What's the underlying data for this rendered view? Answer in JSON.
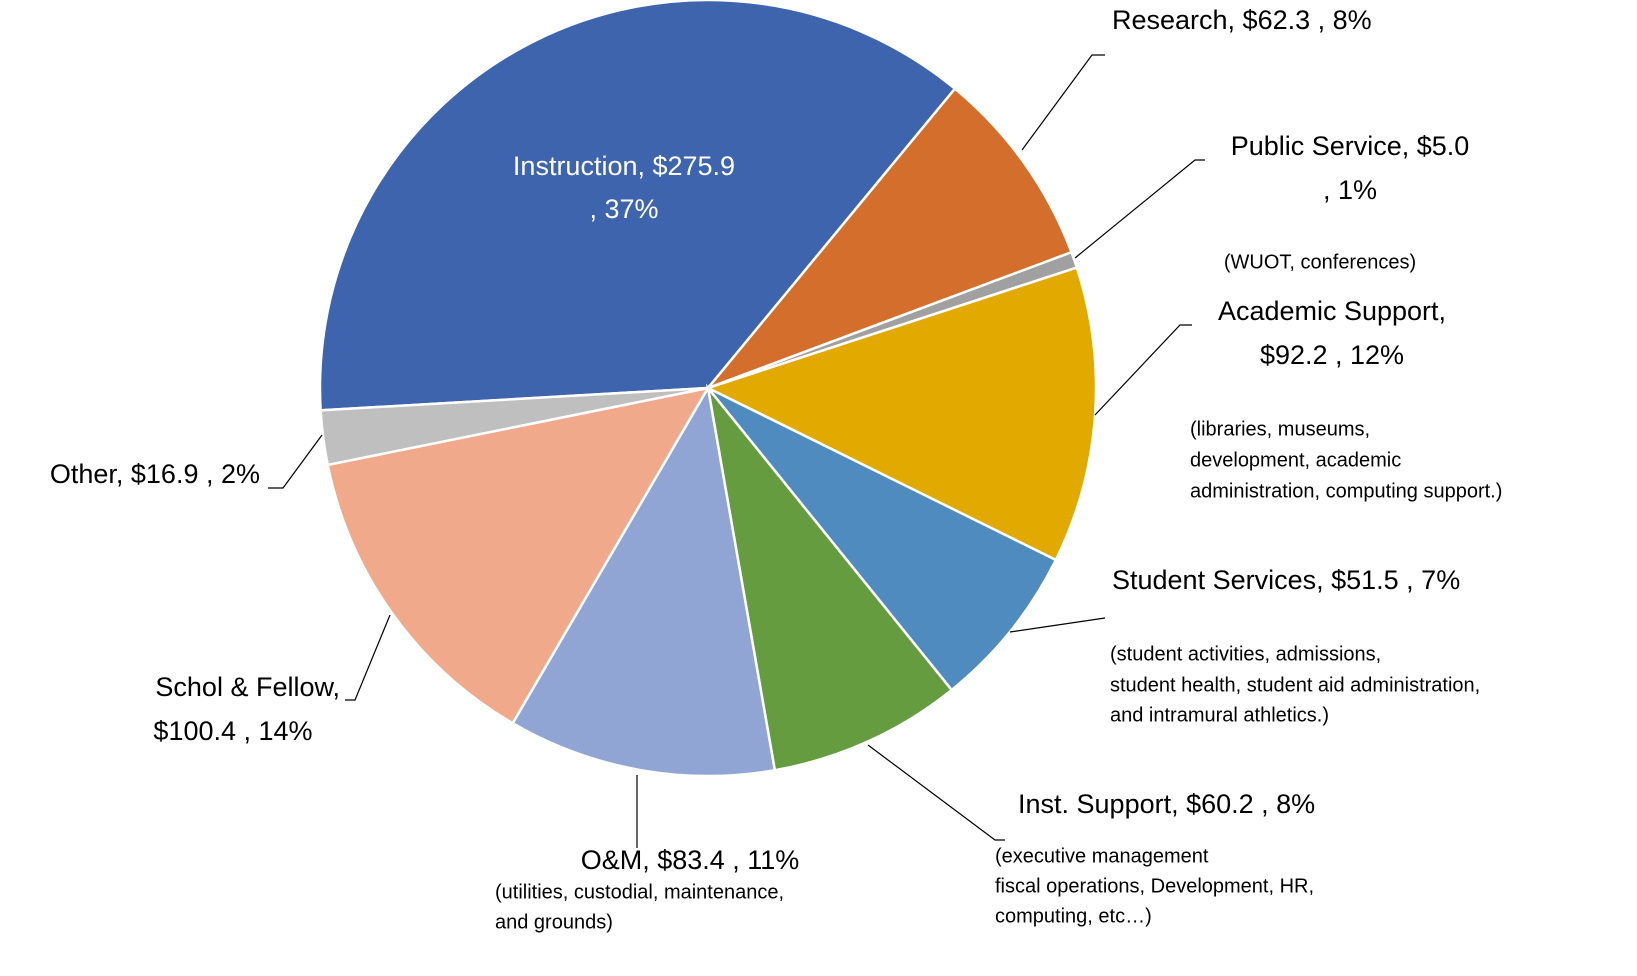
{
  "chart_data": {
    "type": "pie",
    "values": [
      275.9,
      62.3,
      5.0,
      92.2,
      51.5,
      60.2,
      83.4,
      100.4,
      16.9
    ],
    "colors": [
      "#3d64ad",
      "#d46e2c",
      "#a0a0a0",
      "#e2aa00",
      "#508bbf",
      "#649c3f",
      "#91a5d5",
      "#f1a98b",
      "#bfbfbf"
    ],
    "label_lines": [
      [
        "Instruction,  $275.9",
        ", 37%"
      ],
      [
        "Research,  $62.3 , 8%"
      ],
      [
        "Public Service,  $5.0",
        ", 1%"
      ],
      [
        "Academic Support,",
        "$92.2 , 12%"
      ],
      [
        "Student Services,  $51.5 , 7%"
      ],
      [
        "Inst. Support,  $60.2 , 8%"
      ],
      [
        "O&M,  $83.4 , 11%"
      ],
      [
        "Schol & Fellow,",
        "$100.4 , 14%"
      ],
      [
        "Other,  $16.9 , 2%"
      ]
    ],
    "notes": [
      null,
      null,
      [
        "(WUOT, conferences)"
      ],
      [
        "(libraries, museums,",
        "development, academic",
        "administration, computing support.)"
      ],
      [
        "(student activities, admissions,",
        "student health, student aid administration,",
        "and intramural athletics.)"
      ],
      [
        "(executive management",
        "fiscal operations, Development, HR,",
        "computing, etc…)"
      ],
      [
        "(utilities, custodial, maintenance,",
        "and grounds)"
      ],
      null,
      null
    ]
  }
}
